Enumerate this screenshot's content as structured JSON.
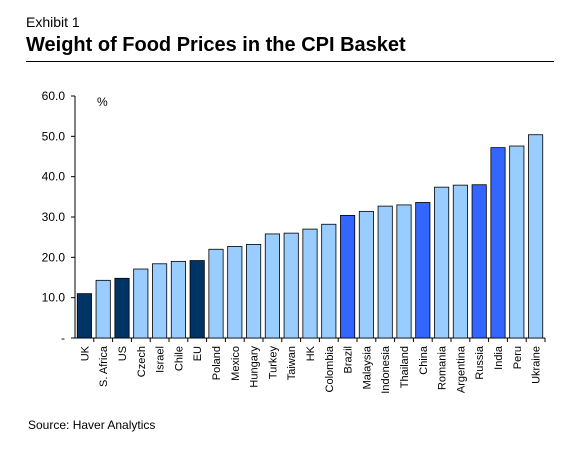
{
  "header": {
    "exhibit": "Exhibit 1",
    "title": "Weight of Food Prices in the CPI Basket"
  },
  "footer": {
    "source": "Source: Haver Analytics"
  },
  "colors": {
    "light": "#99ccff",
    "medium": "#3366ff",
    "dark": "#003366"
  },
  "chart_data": {
    "type": "bar",
    "title": "Weight of Food Prices in the CPI Basket",
    "xlabel": "",
    "ylabel": "",
    "unit_label": "%",
    "ylim": [
      0,
      60
    ],
    "yticks": [
      0,
      10,
      20,
      30,
      40,
      50,
      60
    ],
    "ytick_labels": [
      "-",
      "10.0",
      "20.0",
      "30.0",
      "40.0",
      "50.0",
      "60.0"
    ],
    "grid": false,
    "legend": "none",
    "categories": [
      "UK",
      "S. Africa",
      "US",
      "Czech",
      "Israel",
      "Chile",
      "EU",
      "Poland",
      "Mexico",
      "Hungary",
      "Turkey",
      "Taiwan",
      "HK",
      "Colombia",
      "Brazil",
      "Malaysia",
      "Indonesia",
      "Thailand",
      "China",
      "Romania",
      "Argentina",
      "Russia",
      "India",
      "Peru",
      "Ukraine"
    ],
    "values": [
      11.0,
      14.3,
      14.8,
      17.1,
      18.4,
      19.0,
      19.2,
      22.0,
      22.7,
      23.2,
      25.8,
      26.0,
      27.0,
      28.2,
      30.4,
      31.4,
      32.7,
      33.0,
      33.6,
      37.4,
      37.9,
      38.0,
      47.2,
      47.6,
      50.4
    ],
    "bar_colors": [
      "dark",
      "light",
      "dark",
      "light",
      "light",
      "light",
      "dark",
      "light",
      "light",
      "light",
      "light",
      "light",
      "light",
      "light",
      "medium",
      "light",
      "light",
      "light",
      "medium",
      "light",
      "light",
      "medium",
      "medium",
      "light",
      "light"
    ]
  }
}
